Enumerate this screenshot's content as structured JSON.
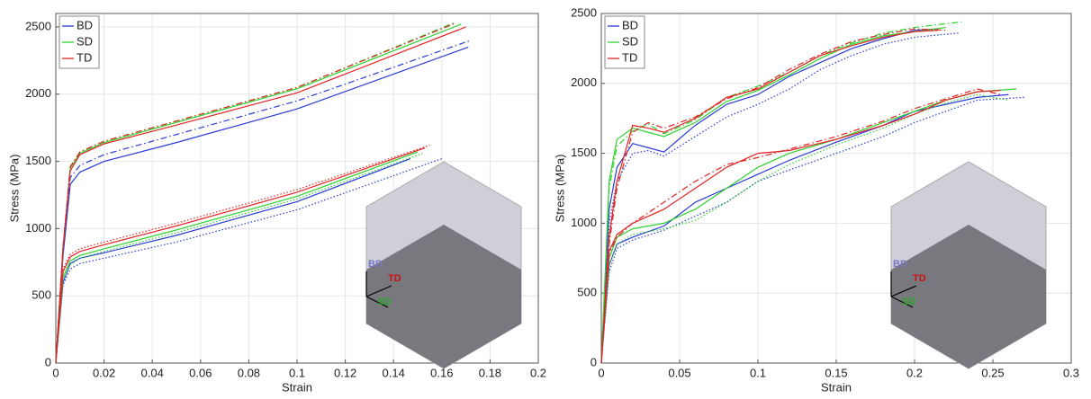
{
  "chart_data": [
    {
      "type": "line",
      "x_label": "Strain",
      "y_label": "Stress (MPa)",
      "xlim": [
        0,
        0.2
      ],
      "xticks": [
        0,
        0.02,
        0.04,
        0.06,
        0.08,
        0.1,
        0.12,
        0.14,
        0.16,
        0.18,
        0.2
      ],
      "ylim": [
        0,
        2600
      ],
      "yticks": [
        0,
        500,
        1000,
        1500,
        2000,
        2500
      ],
      "grid": true,
      "legend": "upper left",
      "inset_labels": [
        "BD",
        "TD",
        "SD"
      ],
      "series": [
        {
          "name": "BD",
          "color": "#2b3bd6",
          "lines": [
            {
              "style": "solid",
              "x": [
                0,
                0.003,
                0.006,
                0.01,
                0.02,
                0.05,
                0.1,
                0.171
              ],
              "values": [
                0,
                800,
                1330,
                1420,
                1500,
                1640,
                1890,
                2350
              ]
            },
            {
              "style": "dashdot",
              "x": [
                0,
                0.003,
                0.006,
                0.01,
                0.02,
                0.05,
                0.1,
                0.172
              ],
              "values": [
                0,
                820,
                1380,
                1470,
                1550,
                1700,
                1950,
                2400
              ]
            },
            {
              "style": "solid",
              "x": [
                0,
                0.003,
                0.006,
                0.01,
                0.02,
                0.05,
                0.1,
                0.147
              ],
              "values": [
                0,
                600,
                740,
                780,
                820,
                950,
                1200,
                1520
              ]
            },
            {
              "style": "dotted",
              "x": [
                0,
                0.003,
                0.006,
                0.01,
                0.02,
                0.05,
                0.1,
                0.16
              ],
              "values": [
                0,
                580,
                700,
                740,
                780,
                900,
                1140,
                1520
              ]
            }
          ]
        },
        {
          "name": "SD",
          "color": "#2fd12f",
          "lines": [
            {
              "style": "solid",
              "x": [
                0,
                0.003,
                0.006,
                0.01,
                0.02,
                0.05,
                0.1,
                0.168
              ],
              "values": [
                0,
                850,
                1450,
                1560,
                1640,
                1790,
                2040,
                2520
              ]
            },
            {
              "style": "dashdot",
              "x": [
                0,
                0.003,
                0.006,
                0.01,
                0.02,
                0.05,
                0.1,
                0.165
              ],
              "values": [
                0,
                860,
                1460,
                1570,
                1650,
                1800,
                2050,
                2530
              ]
            },
            {
              "style": "solid",
              "x": [
                0,
                0.003,
                0.006,
                0.01,
                0.02,
                0.05,
                0.1,
                0.15
              ],
              "values": [
                0,
                640,
                760,
                800,
                850,
                990,
                1240,
                1570
              ]
            },
            {
              "style": "dotted",
              "x": [
                0,
                0.003,
                0.006,
                0.01,
                0.02,
                0.05,
                0.1,
                0.152
              ],
              "values": [
                0,
                620,
                730,
                780,
                830,
                970,
                1220,
                1560
              ]
            }
          ]
        },
        {
          "name": "TD",
          "color": "#e02424",
          "lines": [
            {
              "style": "solid",
              "x": [
                0,
                0.003,
                0.006,
                0.01,
                0.02,
                0.05,
                0.1,
                0.17
              ],
              "values": [
                0,
                860,
                1430,
                1550,
                1630,
                1770,
                2010,
                2500
              ]
            },
            {
              "style": "dashdot",
              "x": [
                0,
                0.003,
                0.006,
                0.01,
                0.02,
                0.05,
                0.1,
                0.166
              ],
              "values": [
                0,
                870,
                1460,
                1570,
                1650,
                1800,
                2050,
                2530
              ]
            },
            {
              "style": "solid",
              "x": [
                0,
                0.003,
                0.006,
                0.01,
                0.02,
                0.05,
                0.1,
                0.153
              ],
              "values": [
                0,
                680,
                790,
                830,
                880,
                1020,
                1270,
                1600
              ]
            },
            {
              "style": "dotted",
              "x": [
                0,
                0.003,
                0.006,
                0.01,
                0.02,
                0.05,
                0.1,
                0.155
              ],
              "values": [
                0,
                700,
                810,
                850,
                900,
                1040,
                1290,
                1620
              ]
            }
          ]
        }
      ]
    },
    {
      "type": "line",
      "x_label": "Strain",
      "y_label": "Stress (MPa)",
      "xlim": [
        0,
        0.3
      ],
      "xticks": [
        0,
        0.05,
        0.1,
        0.15,
        0.2,
        0.25,
        0.3
      ],
      "ylim": [
        0,
        2500
      ],
      "yticks": [
        0,
        500,
        1000,
        1500,
        2000,
        2500
      ],
      "grid": true,
      "legend": "upper left",
      "inset_labels": [
        "BD",
        "TD",
        "SD"
      ],
      "series": [
        {
          "name": "BD",
          "color": "#2b3bd6",
          "lines": [
            {
              "style": "solid",
              "x": [
                0,
                0.005,
                0.01,
                0.02,
                0.03,
                0.04,
                0.06,
                0.08,
                0.1,
                0.12,
                0.14,
                0.16,
                0.18,
                0.2,
                0.215
              ],
              "values": [
                0,
                1100,
                1400,
                1570,
                1540,
                1510,
                1700,
                1850,
                1920,
                2050,
                2150,
                2250,
                2320,
                2380,
                2390
              ]
            },
            {
              "style": "dotted",
              "x": [
                0,
                0.005,
                0.01,
                0.02,
                0.03,
                0.04,
                0.06,
                0.08,
                0.1,
                0.12,
                0.14,
                0.16,
                0.18,
                0.2,
                0.228
              ],
              "values": [
                0,
                1000,
                1300,
                1500,
                1520,
                1480,
                1620,
                1760,
                1850,
                1960,
                2100,
                2200,
                2280,
                2330,
                2360
              ]
            },
            {
              "style": "solid",
              "x": [
                0,
                0.005,
                0.01,
                0.02,
                0.04,
                0.06,
                0.08,
                0.1,
                0.12,
                0.15,
                0.18,
                0.2,
                0.22,
                0.24,
                0.26
              ],
              "values": [
                0,
                700,
                850,
                900,
                980,
                1150,
                1250,
                1350,
                1450,
                1580,
                1700,
                1800,
                1850,
                1900,
                1920
              ]
            },
            {
              "style": "dotted",
              "x": [
                0,
                0.005,
                0.01,
                0.02,
                0.04,
                0.06,
                0.08,
                0.1,
                0.12,
                0.15,
                0.18,
                0.2,
                0.22,
                0.24,
                0.27
              ],
              "values": [
                0,
                650,
                820,
                880,
                950,
                1050,
                1150,
                1300,
                1380,
                1500,
                1620,
                1720,
                1800,
                1880,
                1900
              ]
            }
          ]
        },
        {
          "name": "SD",
          "color": "#2fd12f",
          "lines": [
            {
              "style": "solid",
              "x": [
                0,
                0.005,
                0.01,
                0.02,
                0.03,
                0.04,
                0.06,
                0.08,
                0.1,
                0.12,
                0.14,
                0.16,
                0.18,
                0.2,
                0.22
              ],
              "values": [
                0,
                1300,
                1600,
                1680,
                1650,
                1620,
                1720,
                1870,
                1950,
                2060,
                2180,
                2280,
                2340,
                2370,
                2400
              ]
            },
            {
              "style": "dashdot",
              "x": [
                0,
                0.005,
                0.01,
                0.02,
                0.03,
                0.04,
                0.06,
                0.08,
                0.1,
                0.12,
                0.14,
                0.16,
                0.18,
                0.2,
                0.23
              ],
              "values": [
                0,
                1250,
                1550,
                1660,
                1710,
                1640,
                1740,
                1900,
                1980,
                2080,
                2200,
                2290,
                2360,
                2400,
                2440
              ]
            },
            {
              "style": "solid",
              "x": [
                0,
                0.005,
                0.01,
                0.02,
                0.04,
                0.06,
                0.08,
                0.1,
                0.12,
                0.15,
                0.18,
                0.2,
                0.22,
                0.24,
                0.265
              ],
              "values": [
                0,
                750,
                900,
                960,
                1000,
                1100,
                1250,
                1400,
                1500,
                1600,
                1720,
                1800,
                1880,
                1940,
                1960
              ]
            },
            {
              "style": "dotted",
              "x": [
                0,
                0.005,
                0.01,
                0.02,
                0.04,
                0.06,
                0.08,
                0.1,
                0.12,
                0.15,
                0.18,
                0.2,
                0.22,
                0.24,
                0.26
              ],
              "values": [
                0,
                700,
                850,
                920,
                960,
                1020,
                1150,
                1300,
                1420,
                1560,
                1680,
                1780,
                1860,
                1920,
                1880
              ]
            }
          ]
        },
        {
          "name": "TD",
          "color": "#e02424",
          "lines": [
            {
              "style": "solid",
              "x": [
                0,
                0.005,
                0.01,
                0.02,
                0.03,
                0.04,
                0.06,
                0.08,
                0.1,
                0.12,
                0.14,
                0.16,
                0.18,
                0.2,
                0.215
              ],
              "values": [
                0,
                900,
                1300,
                1700,
                1680,
                1650,
                1750,
                1900,
                1960,
                2080,
                2200,
                2270,
                2330,
                2370,
                2380
              ]
            },
            {
              "style": "dashdot",
              "x": [
                0,
                0.005,
                0.01,
                0.02,
                0.03,
                0.04,
                0.06,
                0.08,
                0.1,
                0.12,
                0.14,
                0.16,
                0.18,
                0.2,
                0.22
              ],
              "values": [
                0,
                850,
                1250,
                1650,
                1720,
                1680,
                1760,
                1890,
                1970,
                2100,
                2210,
                2300,
                2350,
                2390,
                2380
              ]
            },
            {
              "style": "solid",
              "x": [
                0,
                0.005,
                0.01,
                0.02,
                0.04,
                0.06,
                0.08,
                0.1,
                0.12,
                0.15,
                0.18,
                0.2,
                0.22,
                0.24,
                0.255
              ],
              "values": [
                0,
                800,
                920,
                1000,
                1100,
                1250,
                1400,
                1500,
                1520,
                1600,
                1700,
                1780,
                1880,
                1940,
                1950
              ]
            },
            {
              "style": "dashdot",
              "x": [
                0,
                0.005,
                0.01,
                0.02,
                0.04,
                0.06,
                0.08,
                0.1,
                0.12,
                0.15,
                0.18,
                0.2,
                0.22,
                0.24,
                0.255
              ],
              "values": [
                0,
                780,
                900,
                1000,
                1150,
                1300,
                1420,
                1470,
                1530,
                1620,
                1730,
                1820,
                1890,
                1960,
                1920
              ]
            }
          ]
        }
      ]
    }
  ]
}
